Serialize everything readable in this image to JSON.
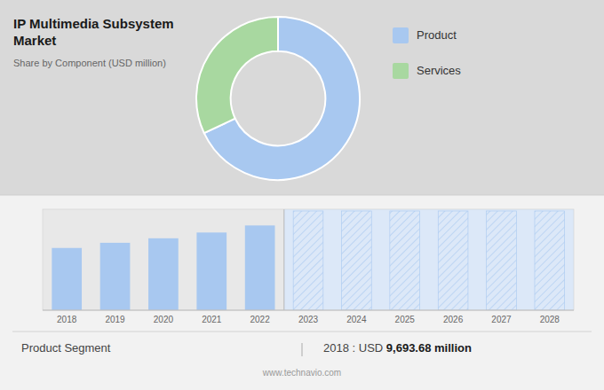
{
  "chart_data": [
    {
      "type": "pie",
      "title": "IP Multimedia Subsystem\nMarket",
      "subtitle": "Share by Component (USD million)",
      "categories": [
        "Product",
        "Services"
      ],
      "values": [
        68,
        32
      ],
      "colors": [
        "#a8c8f0",
        "#a8d8a0"
      ],
      "legend": "right"
    },
    {
      "type": "bar",
      "categories": [
        "2018",
        "2019",
        "2020",
        "2021",
        "2022",
        "2023",
        "2024",
        "2025",
        "2026",
        "2027",
        "2028"
      ],
      "values": [
        9693.68,
        10500,
        11200,
        12100,
        13200,
        null,
        null,
        null,
        null,
        null,
        null
      ],
      "color": "#a8c8f0",
      "ylim": [
        0,
        15731.76
      ],
      "tick_labels": "x",
      "annotations": [
        "Product Segment",
        "2018 : USD ",
        "9,693.68 million",
        "www.technavio.com"
      ]
    }
  ]
}
